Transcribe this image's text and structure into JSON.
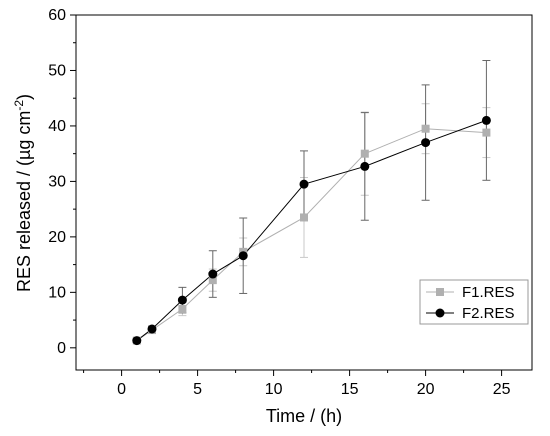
{
  "chart_data": {
    "type": "line",
    "xlabel": "Time / (h)",
    "ylabel_parts": [
      "RES released / (µg cm",
      "-2",
      ")"
    ],
    "xlim": [
      -3,
      27
    ],
    "ylim": [
      -4,
      60
    ],
    "x_ticks": [
      0,
      5,
      10,
      15,
      20,
      25
    ],
    "y_ticks": [
      0,
      10,
      20,
      30,
      40,
      50,
      60
    ],
    "grid": false,
    "legend_position": "bottom-right",
    "series": [
      {
        "name": "F1.RES",
        "color": "#b0b0b0",
        "marker": "square",
        "points": [
          {
            "x": 1,
            "y": 1.3,
            "err": 0.4
          },
          {
            "x": 2,
            "y": 3.2,
            "err": 0.6
          },
          {
            "x": 4,
            "y": 7.0,
            "err": 1.2
          },
          {
            "x": 6,
            "y": 12.2,
            "err": 2.0
          },
          {
            "x": 8,
            "y": 17.3,
            "err": 2.5
          },
          {
            "x": 12,
            "y": 23.5,
            "err": 7.2
          },
          {
            "x": 16,
            "y": 35.0,
            "err": 7.5
          },
          {
            "x": 20,
            "y": 39.5,
            "err": 4.5
          },
          {
            "x": 24,
            "y": 38.8,
            "err": 4.5
          }
        ]
      },
      {
        "name": "F2.RES",
        "color": "#000000",
        "marker": "circle",
        "points": [
          {
            "x": 1,
            "y": 1.3,
            "err": 0.3
          },
          {
            "x": 2,
            "y": 3.4,
            "err": 0.5
          },
          {
            "x": 4,
            "y": 8.6,
            "err": 2.3
          },
          {
            "x": 6,
            "y": 13.3,
            "err": 4.2
          },
          {
            "x": 8,
            "y": 16.6,
            "err": 6.8
          },
          {
            "x": 12,
            "y": 29.5,
            "err": 6.0
          },
          {
            "x": 16,
            "y": 32.7,
            "err": 9.7
          },
          {
            "x": 20,
            "y": 37.0,
            "err": 10.4
          },
          {
            "x": 24,
            "y": 41.0,
            "err": 10.8
          }
        ]
      }
    ]
  }
}
